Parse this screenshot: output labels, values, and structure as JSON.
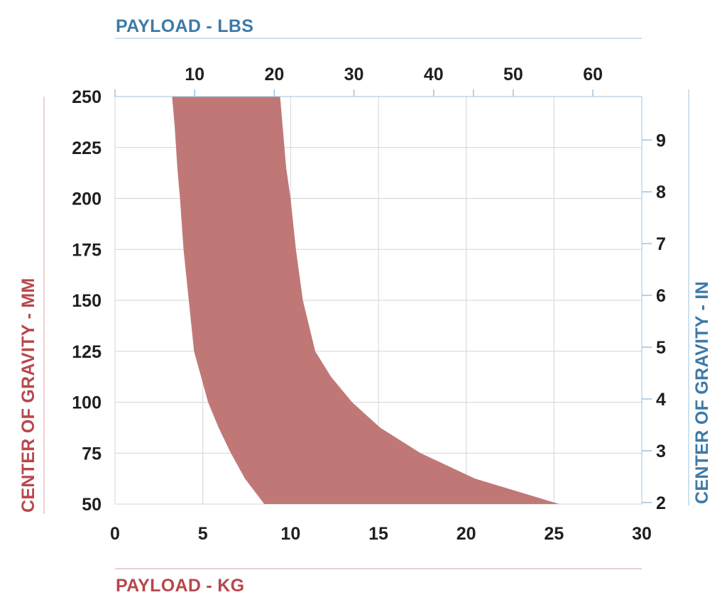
{
  "chart_data": {
    "type": "area",
    "title": "",
    "xlabel": "PAYLOAD - KG",
    "x2label": "PAYLOAD - LBS",
    "ylabel": "CENTER OF GRAVITY - MM",
    "y2label": "CENTER OF GRAVITY - IN",
    "xlim": [
      0,
      30
    ],
    "ylim": [
      50,
      250
    ],
    "x2lim": [
      0,
      66.14
    ],
    "y2lim": [
      1.97,
      9.84
    ],
    "x_ticks": [
      "0",
      "5",
      "10",
      "15",
      "20",
      "25",
      "30"
    ],
    "y_ticks": [
      "50",
      "75",
      "100",
      "125",
      "150",
      "175",
      "200",
      "225",
      "250"
    ],
    "x2_ticks": [
      "10",
      "20",
      "30",
      "40",
      "50",
      "60"
    ],
    "y2_ticks": [
      "2",
      "3",
      "4",
      "5",
      "6",
      "7",
      "8",
      "9"
    ],
    "grid": true,
    "series": [
      {
        "x_lower": [
          8.5,
          7.4,
          6.6,
          5.9,
          5.3,
          4.9,
          4.5,
          4.2,
          3.9,
          3.7,
          3.55,
          3.4,
          3.25
        ],
        "x_upper": [
          25.3,
          20.5,
          17.4,
          15.1,
          13.5,
          12.3,
          11.4,
          10.7,
          10.3,
          10.0,
          9.75,
          9.55,
          9.4
        ],
        "y": [
          50,
          62.5,
          75,
          87.5,
          100,
          112.5,
          125,
          150,
          175,
          200,
          215,
          235,
          250
        ]
      }
    ],
    "colors": {
      "fill": "#c07877",
      "grid": "#cfd6db",
      "kg_accent": "#b8474b",
      "lbs_accent": "#3d7aa8",
      "kg_rule": "#e2a2a4",
      "lbs_rule": "#9ec3dc",
      "tick_text": "#1f1f1f"
    }
  }
}
